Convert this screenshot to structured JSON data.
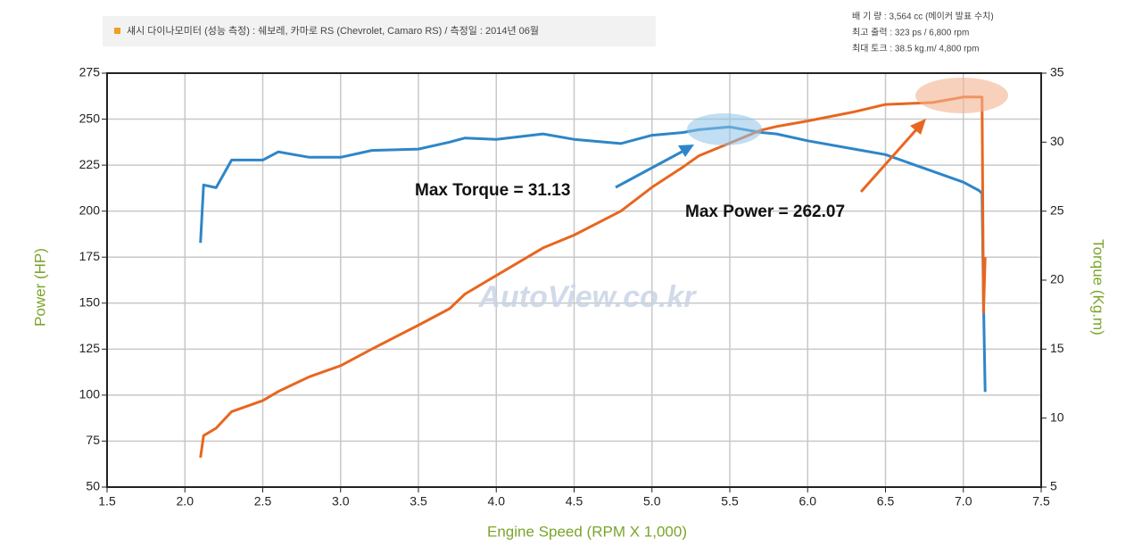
{
  "chart_data": {
    "type": "line",
    "header": "섀시 다이나모미터 (성능 측정) : 쉐보레, 카마로 RS (Chevrolet, Camaro RS) / 측정일 : 2014년 06월",
    "specs": [
      "배 기 량 : 3,564 cc (메이커 발표 수치)",
      "최고 출력 : 323 ps / 6,800 rpm",
      "최대 토크 : 38.5 kg.m/ 4,800 rpm"
    ],
    "xlabel": "Engine Speed (RPM X 1,000)",
    "ylabel": "Power (HP)",
    "y2label": "Torque (Kg.m)",
    "annotations": [
      "Max Torque = 31.13",
      "Max Power = 262.07"
    ],
    "watermark": "AutoView.co.kr",
    "grid": true,
    "x": [
      2.1,
      2.12,
      2.2,
      2.3,
      2.5,
      2.6,
      2.7,
      2.8,
      3.0,
      3.2,
      3.5,
      3.7,
      3.8,
      4.0,
      4.3,
      4.5,
      4.8,
      5.0,
      5.2,
      5.3,
      5.5,
      5.7,
      5.8,
      6.0,
      6.3,
      6.5,
      6.8,
      7.0,
      7.1,
      7.12,
      7.13,
      7.14
    ],
    "series": [
      {
        "name": "Torque",
        "color": "#2e86c8",
        "axis": "y2",
        "values": [
          22.7,
          26.9,
          26.7,
          28.7,
          28.7,
          29.3,
          29.1,
          28.9,
          28.9,
          29.4,
          29.5,
          30.0,
          30.3,
          30.2,
          30.6,
          30.2,
          29.9,
          30.5,
          30.7,
          30.9,
          31.1,
          30.7,
          30.6,
          30.1,
          29.5,
          29.1,
          27.9,
          27.1,
          26.5,
          26.3,
          18.3,
          11.9
        ]
      },
      {
        "name": "Power",
        "color": "#e8661f",
        "axis": "y",
        "values": [
          66,
          78,
          82,
          91,
          97,
          102,
          106,
          110,
          116,
          125,
          138,
          147,
          155,
          165,
          180,
          187,
          200,
          213,
          224,
          230,
          237,
          244,
          246,
          249,
          254,
          258,
          259,
          262,
          262,
          262,
          145,
          175
        ]
      }
    ],
    "xlim": [
      1.5,
      7.5
    ],
    "xticks": [
      1.5,
      {
        "value": 2,
        "label": "2.0"
      },
      2.5,
      {
        "value": 3,
        "label": "3.0"
      },
      3.5,
      {
        "value": 4,
        "label": "4.0"
      },
      4.5,
      {
        "value": 5,
        "label": "5.0"
      },
      5.5,
      {
        "value": 6,
        "label": "6.0"
      },
      6.5,
      {
        "value": 7,
        "label": "7.0"
      },
      7.5
    ],
    "ylim": [
      50,
      275
    ],
    "yticks": [
      50,
      75,
      100,
      125,
      150,
      175,
      200,
      225,
      250,
      275
    ],
    "y2lim": [
      5,
      35
    ],
    "y2ticks": [
      5,
      10,
      15,
      20,
      25,
      30,
      35
    ]
  }
}
